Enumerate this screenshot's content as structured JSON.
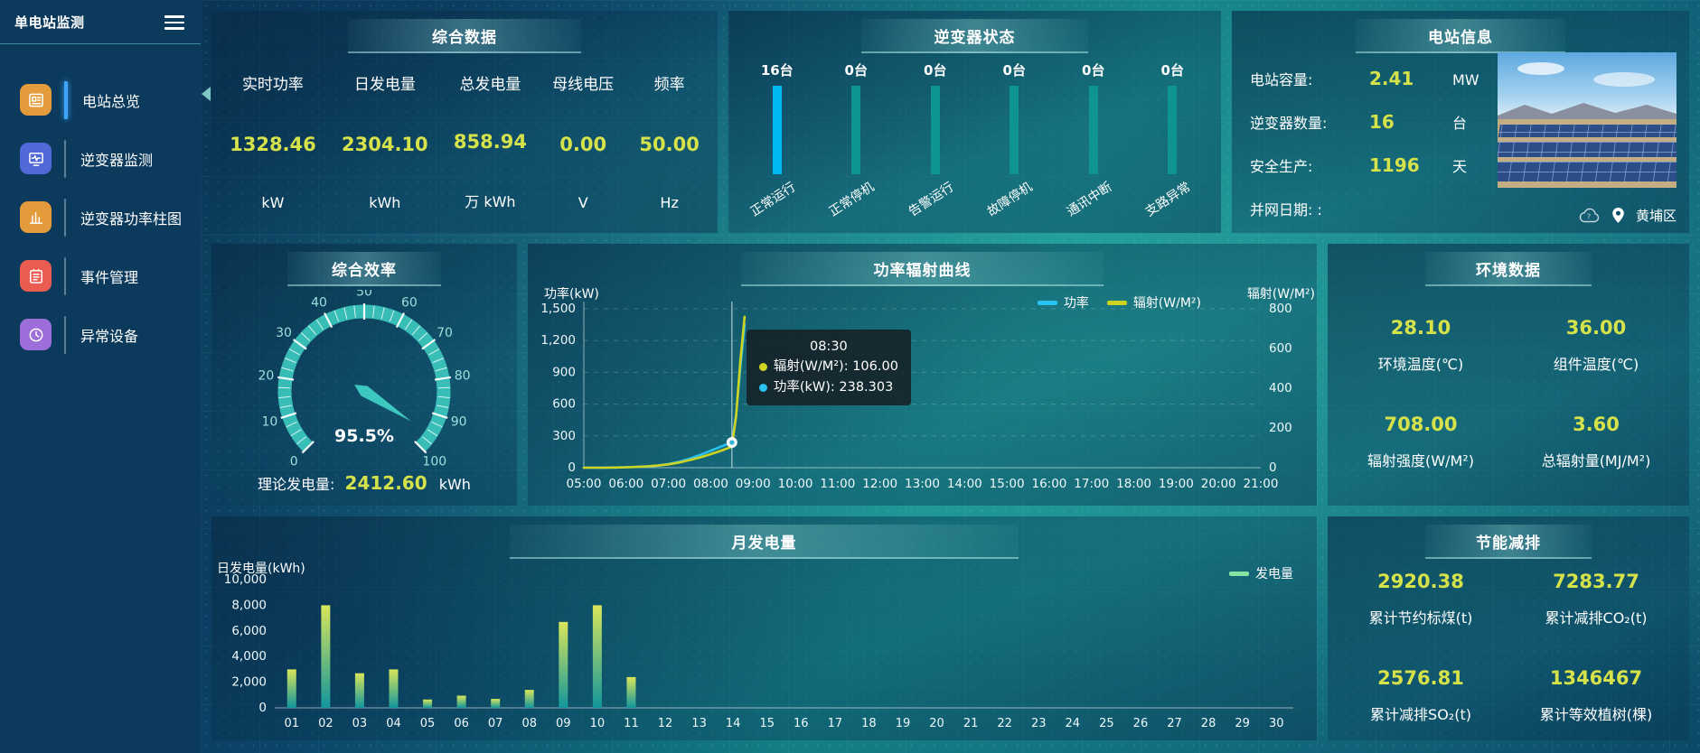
{
  "sidebar": {
    "title": "单电站监测",
    "items": [
      {
        "id": "station-overview",
        "label": "电站总览",
        "icon": "overview-icon",
        "color": "#e49b3c",
        "active": true
      },
      {
        "id": "inverter-monitor",
        "label": "逆变器监测",
        "icon": "inverter-monitor-icon",
        "color": "#5069d6",
        "active": false
      },
      {
        "id": "inverter-power-bars",
        "label": "逆变器功率柱图",
        "icon": "bar-chart-icon",
        "color": "#e49b3c",
        "active": false
      },
      {
        "id": "event-management",
        "label": "事件管理",
        "icon": "event-icon",
        "color": "#ea5b51",
        "active": false
      },
      {
        "id": "abnormal-device",
        "label": "异常设备",
        "icon": "abnormal-device-icon",
        "color": "#9d6ed9",
        "active": false
      }
    ]
  },
  "panels": {
    "summary": {
      "title": "综合数据",
      "stats": [
        {
          "label": "实时功率",
          "value": "1328.46",
          "unit": "kW"
        },
        {
          "label": "日发电量",
          "value": "2304.10",
          "unit": "kWh"
        },
        {
          "label": "总发电量",
          "value": "858.94",
          "unit": "万 kWh"
        },
        {
          "label": "母线电压",
          "value": "0.00",
          "unit": "V"
        },
        {
          "label": "频率",
          "value": "50.00",
          "unit": "Hz"
        }
      ]
    },
    "inverter_status": {
      "title": "逆变器状态",
      "bars": [
        {
          "count": "16台",
          "label": "正常运行",
          "highlight": true
        },
        {
          "count": "0台",
          "label": "正常停机",
          "highlight": false
        },
        {
          "count": "0台",
          "label": "告警运行",
          "highlight": false
        },
        {
          "count": "0台",
          "label": "故障停机",
          "highlight": false
        },
        {
          "count": "0台",
          "label": "通讯中断",
          "highlight": false
        },
        {
          "count": "0台",
          "label": "支路异常",
          "highlight": false
        }
      ]
    },
    "station_info": {
      "title": "电站信息",
      "rows": [
        {
          "label": "电站容量:",
          "value": "2.41",
          "unit": "MW"
        },
        {
          "label": "逆变器数量:",
          "value": "16",
          "unit": "台"
        },
        {
          "label": "安全生产:",
          "value": "1196",
          "unit": "天"
        },
        {
          "label": "并网日期: :",
          "value": "",
          "unit": ""
        }
      ],
      "location": "黄埔区"
    },
    "efficiency": {
      "title": "综合效率",
      "footer_label": "理论发电量:",
      "footer_value": "2412.60",
      "footer_unit": "kWh"
    },
    "power_curve": {
      "title": "功率辐射曲线"
    },
    "environment": {
      "title": "环境数据",
      "stats": [
        {
          "value": "28.10",
          "label": "环境温度(℃)"
        },
        {
          "value": "36.00",
          "label": "组件温度(℃)"
        },
        {
          "value": "708.00",
          "label": "辐射强度(W/M²)"
        },
        {
          "value": "3.60",
          "label": "总辐射量(MJ/M²)"
        }
      ]
    },
    "monthly": {
      "title": "月发电量"
    },
    "savings": {
      "title": "节能减排",
      "stats": [
        {
          "value": "2920.38",
          "label": "累计节约标煤(t)"
        },
        {
          "value": "7283.77",
          "label": "累计减排CO₂(t)"
        },
        {
          "value": "2576.81",
          "label": "累计减排SO₂(t)"
        },
        {
          "value": "1346467",
          "label": "累计等效植树(棵)"
        }
      ]
    }
  },
  "colors": {
    "accent_yellow": "#d6e24a",
    "bar_highlight": "#00b9f2",
    "bar_normal": "#0f9494",
    "gauge_teal": "#3cc8be",
    "line_power": "#29c1f0",
    "line_radiation": "#cdd421",
    "bar_gradient_top": "#d9e65a",
    "bar_gradient_bottom": "#12969c",
    "monthly_legend": "#86e3a1"
  },
  "chart_data": [
    {
      "type": "gauge",
      "title": "综合效率",
      "min": 0,
      "max": 100,
      "value": 95.5,
      "value_label": "95.5%",
      "tick_labels": [
        0,
        10,
        20,
        30,
        40,
        50,
        60,
        70,
        80,
        90,
        100
      ]
    },
    {
      "type": "line",
      "title": "功率辐射曲线",
      "ylabel_left": "功率(kW)",
      "ylabel_right": "辐射(W/M²)",
      "ylim_left": [
        0,
        1500
      ],
      "ytick_step_left": 300,
      "ylim_right": [
        0,
        800
      ],
      "ytick_step_right": 200,
      "x_range": [
        5,
        21
      ],
      "x_ticks": [
        "05:00",
        "06:00",
        "07:00",
        "08:00",
        "09:00",
        "10:00",
        "11:00",
        "12:00",
        "13:00",
        "14:00",
        "15:00",
        "16:00",
        "17:00",
        "18:00",
        "19:00",
        "20:00",
        "21:00"
      ],
      "legend_position": "top-right",
      "series": [
        {
          "name": "功率",
          "axis": "left",
          "color": "#29c1f0",
          "x": [
            5,
            5.25,
            5.5,
            5.75,
            6,
            6.25,
            6.5,
            6.75,
            7,
            7.25,
            7.5,
            7.75,
            8,
            8.25,
            8.5,
            8.6,
            8.7,
            8.8
          ],
          "values": [
            0,
            0,
            1,
            2,
            4,
            7,
            12,
            20,
            35,
            55,
            85,
            120,
            160,
            200,
            238.3,
            500,
            950,
            1350
          ]
        },
        {
          "name": "辐射(W/M²)",
          "axis": "right",
          "color": "#cdd421",
          "x": [
            5,
            5.25,
            5.5,
            5.75,
            6,
            6.25,
            6.5,
            6.75,
            7,
            7.25,
            7.5,
            7.75,
            8,
            8.25,
            8.5,
            8.6,
            8.7,
            8.8
          ],
          "values": [
            0,
            0,
            0,
            1,
            2,
            4,
            7,
            11,
            17,
            26,
            38,
            52,
            68,
            86,
            106,
            260,
            540,
            760
          ]
        }
      ],
      "tooltip": {
        "x_hour": 8.5,
        "time": "08:30",
        "items": [
          {
            "name": "辐射(W/M²)",
            "value": "106.00",
            "color": "#cdd421"
          },
          {
            "name": "功率(kW)",
            "value": "238.303",
            "color": "#29c1f0"
          }
        ]
      }
    },
    {
      "type": "bar",
      "title": "月发电量",
      "ylabel": "日发电量(kWh)",
      "ylim": [
        0,
        10000
      ],
      "ytick_step": 2000,
      "legend": "发电量",
      "categories": [
        "01",
        "02",
        "03",
        "04",
        "05",
        "06",
        "07",
        "08",
        "09",
        "10",
        "11",
        "12",
        "13",
        "14",
        "15",
        "16",
        "17",
        "18",
        "19",
        "20",
        "21",
        "22",
        "23",
        "24",
        "25",
        "26",
        "27",
        "28",
        "29",
        "30"
      ],
      "values": [
        3000,
        8000,
        2700,
        3000,
        650,
        950,
        700,
        1400,
        6700,
        8000,
        2400,
        0,
        0,
        0,
        0,
        0,
        0,
        0,
        0,
        0,
        0,
        0,
        0,
        0,
        0,
        0,
        0,
        0,
        0,
        0
      ]
    }
  ]
}
